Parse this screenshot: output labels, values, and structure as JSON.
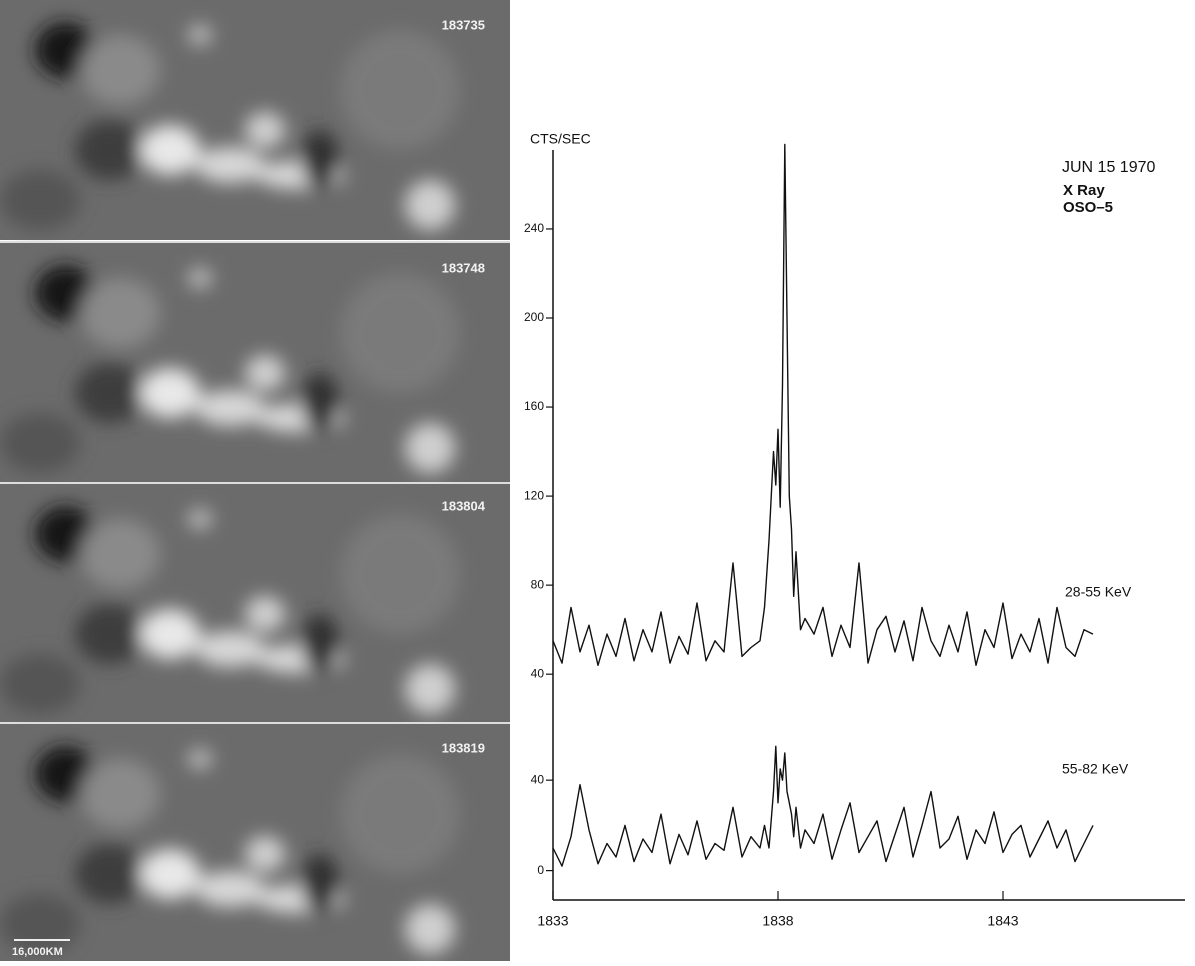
{
  "images": {
    "panels": [
      {
        "label": "183735"
      },
      {
        "label": "183748"
      },
      {
        "label": "183804"
      },
      {
        "label": "183819"
      }
    ],
    "scale_label": "16,000KM"
  },
  "chart_data": [
    {
      "type": "line",
      "title": "JUN 15 1970",
      "subtitle": [
        "X Ray",
        "OSO–5"
      ],
      "y_label": "CTS/SEC",
      "xlim": [
        1833,
        1847
      ],
      "ylim": [
        32,
        284
      ],
      "yticks": [
        40,
        80,
        120,
        160,
        200,
        240
      ],
      "x": [
        1833.0,
        1833.2,
        1833.4,
        1833.6,
        1833.8,
        1834.0,
        1834.2,
        1834.4,
        1834.6,
        1834.8,
        1835.0,
        1835.2,
        1835.4,
        1835.6,
        1835.8,
        1836.0,
        1836.2,
        1836.4,
        1836.6,
        1836.8,
        1837.0,
        1837.2,
        1837.4,
        1837.6,
        1837.7,
        1837.8,
        1837.9,
        1837.95,
        1838.0,
        1838.05,
        1838.1,
        1838.15,
        1838.2,
        1838.25,
        1838.3,
        1838.35,
        1838.4,
        1838.5,
        1838.6,
        1838.8,
        1839.0,
        1839.2,
        1839.4,
        1839.6,
        1839.8,
        1840.0,
        1840.2,
        1840.4,
        1840.6,
        1840.8,
        1841.0,
        1841.2,
        1841.4,
        1841.6,
        1841.8,
        1842.0,
        1842.2,
        1842.4,
        1842.6,
        1842.8,
        1843.0,
        1843.2,
        1843.4,
        1843.6,
        1843.8,
        1844.0,
        1844.2,
        1844.4,
        1844.6,
        1844.8,
        1845.0
      ],
      "series": [
        {
          "name": "28-55 KeV",
          "color": "#111111",
          "values": [
            55,
            45,
            70,
            50,
            62,
            44,
            58,
            48,
            65,
            46,
            60,
            50,
            68,
            45,
            57,
            49,
            72,
            46,
            55,
            50,
            90,
            48,
            52,
            55,
            70,
            100,
            140,
            125,
            150,
            115,
            170,
            278,
            200,
            120,
            105,
            75,
            95,
            60,
            65,
            58,
            70,
            48,
            62,
            52,
            90,
            45,
            60,
            66,
            50,
            64,
            46,
            70,
            55,
            48,
            62,
            50,
            68,
            44,
            60,
            52,
            72,
            47,
            58,
            50,
            65,
            45,
            70,
            52,
            48,
            60,
            58
          ]
        }
      ]
    },
    {
      "type": "line",
      "xlim": [
        1833,
        1847
      ],
      "ylim": [
        -13,
        79
      ],
      "yticks": [
        0,
        40
      ],
      "xticks": [
        1833,
        1838,
        1843
      ],
      "x": [
        1833.0,
        1833.2,
        1833.4,
        1833.6,
        1833.8,
        1834.0,
        1834.2,
        1834.4,
        1834.6,
        1834.8,
        1835.0,
        1835.2,
        1835.4,
        1835.6,
        1835.8,
        1836.0,
        1836.2,
        1836.4,
        1836.6,
        1836.8,
        1837.0,
        1837.2,
        1837.4,
        1837.6,
        1837.7,
        1837.8,
        1837.9,
        1837.95,
        1838.0,
        1838.05,
        1838.1,
        1838.15,
        1838.2,
        1838.25,
        1838.3,
        1838.35,
        1838.4,
        1838.5,
        1838.6,
        1838.8,
        1839.0,
        1839.2,
        1839.4,
        1839.6,
        1839.8,
        1840.0,
        1840.2,
        1840.4,
        1840.6,
        1840.8,
        1841.0,
        1841.2,
        1841.4,
        1841.6,
        1841.8,
        1842.0,
        1842.2,
        1842.4,
        1842.6,
        1842.8,
        1843.0,
        1843.2,
        1843.4,
        1843.6,
        1843.8,
        1844.0,
        1844.2,
        1844.4,
        1844.6,
        1844.8,
        1845.0
      ],
      "series": [
        {
          "name": "55-82 KeV",
          "color": "#111111",
          "values": [
            10,
            2,
            15,
            38,
            18,
            3,
            12,
            6,
            20,
            4,
            14,
            8,
            25,
            3,
            16,
            7,
            22,
            5,
            12,
            9,
            28,
            6,
            15,
            10,
            20,
            10,
            35,
            55,
            30,
            45,
            40,
            52,
            35,
            30,
            25,
            15,
            28,
            10,
            18,
            12,
            25,
            5,
            18,
            30,
            8,
            15,
            22,
            4,
            16,
            28,
            6,
            20,
            35,
            10,
            14,
            24,
            5,
            18,
            12,
            26,
            8,
            16,
            20,
            6,
            14,
            22,
            10,
            18,
            4,
            12,
            20
          ]
        }
      ]
    }
  ]
}
